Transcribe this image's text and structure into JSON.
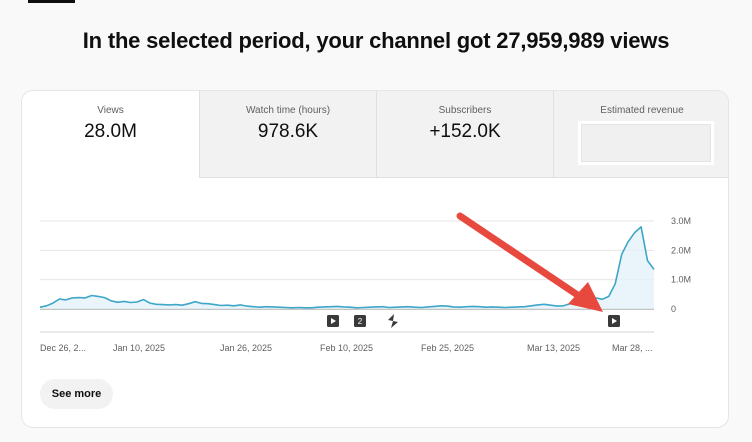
{
  "headline": "In the selected period, your channel got 27,959,989 views",
  "metrics": [
    {
      "label": "Views",
      "value": "28.0M",
      "selected": true
    },
    {
      "label": "Watch time (hours)",
      "value": "978.6K",
      "selected": false
    },
    {
      "label": "Subscribers",
      "value": "+152.0K",
      "selected": false
    },
    {
      "label": "Estimated revenue",
      "value": "",
      "selected": false
    }
  ],
  "see_more_label": "See more",
  "markers": [
    {
      "icon": "play-icon",
      "label": ""
    },
    {
      "icon": "count-badge",
      "label": "2"
    },
    {
      "icon": "shorts-icon",
      "label": ""
    },
    {
      "icon": "play-icon",
      "label": ""
    }
  ],
  "colors": {
    "line": "#3ea6c8",
    "fill": "#e3f3f9",
    "annotation_arrow": "#e8493f"
  },
  "chart_data": {
    "type": "area",
    "title": "",
    "xlabel": "",
    "ylabel": "",
    "x_tick_labels": [
      "Dec 26, 2...",
      "Jan 10, 2025",
      "Jan 26, 2025",
      "Feb 10, 2025",
      "Feb 25, 2025",
      "Mar 13, 2025",
      "Mar 28, ..."
    ],
    "y_tick_labels": [
      "0",
      "1.0M",
      "2.0M",
      "3.0M"
    ],
    "ylim": [
      0,
      3000000
    ],
    "grid": true,
    "series": [
      {
        "values": [
          60000,
          110000,
          200000,
          340000,
          310000,
          380000,
          390000,
          380000,
          460000,
          430000,
          390000,
          280000,
          230000,
          260000,
          220000,
          240000,
          320000,
          200000,
          160000,
          150000,
          140000,
          150000,
          130000,
          180000,
          250000,
          190000,
          180000,
          150000,
          120000,
          130000,
          110000,
          140000,
          100000,
          80000,
          60000,
          80000,
          70000,
          60000,
          50000,
          40000,
          50000,
          40000,
          40000,
          60000,
          70000,
          80000,
          90000,
          70000,
          60000,
          40000,
          50000,
          60000,
          70000,
          80000,
          50000,
          60000,
          70000,
          80000,
          60000,
          50000,
          70000,
          90000,
          110000,
          100000,
          70000,
          60000,
          80000,
          90000,
          80000,
          60000,
          70000,
          60000,
          50000,
          60000,
          70000,
          80000,
          110000,
          140000,
          160000,
          130000,
          100000,
          110000,
          180000,
          230000,
          260000,
          250000,
          380000,
          330000,
          430000,
          860000,
          1860000,
          2290000,
          2600000,
          2800000,
          1650000,
          1350000
        ]
      }
    ]
  }
}
